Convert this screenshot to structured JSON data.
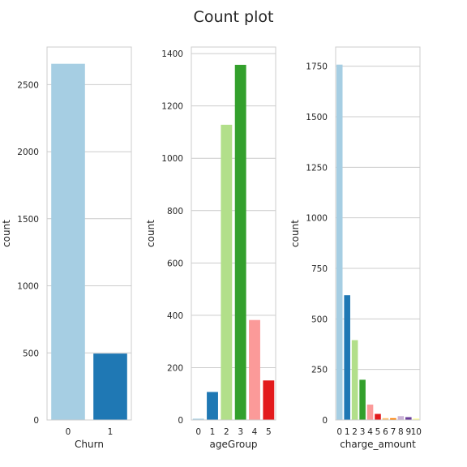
{
  "title": "Count plot",
  "palette": [
    "#a6cee3",
    "#1f78b4",
    "#b2df8a",
    "#33a02c",
    "#fb9a99",
    "#e31a1c",
    "#fdbf6f",
    "#ff7f00",
    "#cab2d6",
    "#6a3d9a",
    "#ffff99"
  ],
  "chart_data": [
    {
      "type": "bar",
      "xlabel": "Churn",
      "ylabel": "count",
      "categories": [
        "0",
        "1"
      ],
      "values": [
        2655,
        495
      ],
      "ylim": [
        0,
        2780
      ],
      "yticks": [
        0,
        500,
        1000,
        1500,
        2000,
        2500
      ],
      "grid": true
    },
    {
      "type": "bar",
      "xlabel": "ageGroup",
      "ylabel": "count",
      "categories": [
        "0",
        "1",
        "2",
        "3",
        "4",
        "5"
      ],
      "values": [
        5,
        107,
        1128,
        1357,
        382,
        151
      ],
      "ylim": [
        0,
        1425
      ],
      "yticks": [
        0,
        200,
        400,
        600,
        800,
        1000,
        1200,
        1400
      ],
      "grid": true
    },
    {
      "type": "bar",
      "xlabel": "charge_amount",
      "ylabel": "count",
      "categories": [
        "0",
        "1",
        "2",
        "3",
        "4",
        "5",
        "6",
        "7",
        "8",
        "9",
        "10"
      ],
      "values": [
        1758,
        617,
        395,
        199,
        76,
        30,
        9,
        9,
        19,
        14,
        7
      ],
      "ylim": [
        0,
        1845
      ],
      "yticks": [
        0,
        250,
        500,
        750,
        1000,
        1250,
        1500,
        1750
      ],
      "grid": true
    }
  ]
}
